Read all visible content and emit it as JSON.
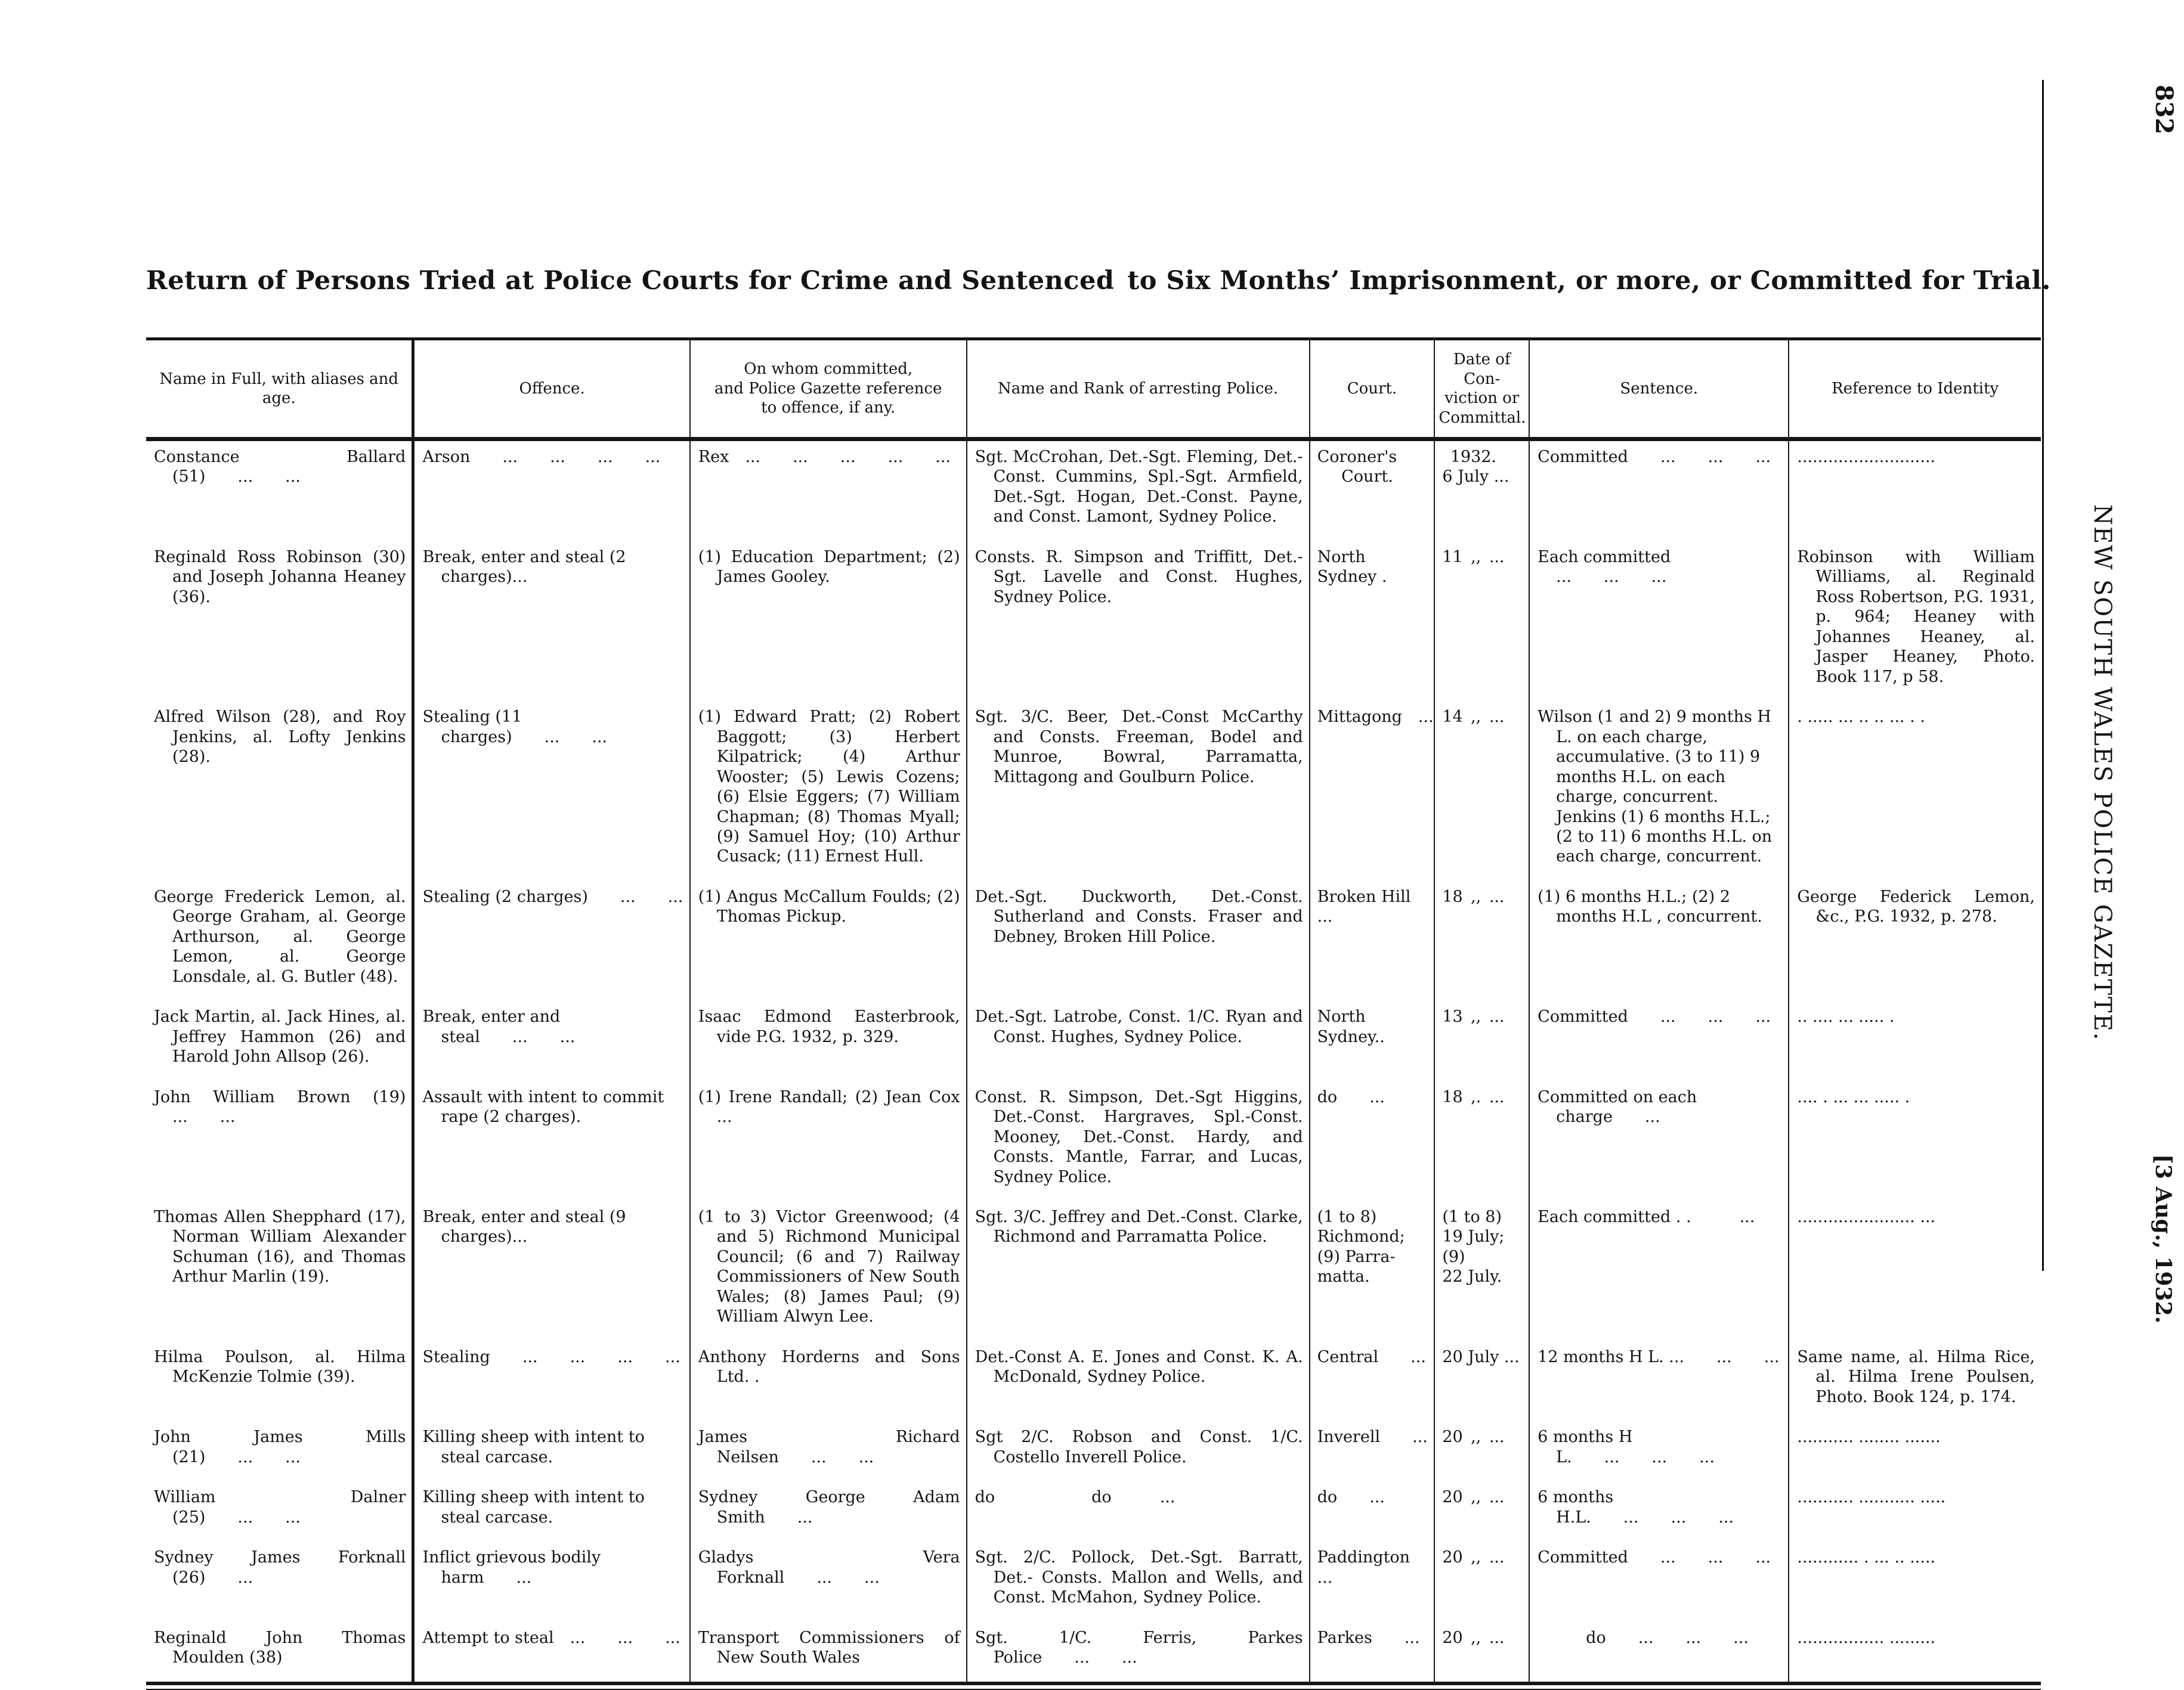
{
  "page": {
    "page_number": "832",
    "title": "Return of Persons Tried at Police Courts for Crime and Sentenced to Six Months’ Imprisonment, or more, or Committed for Trial.",
    "journal_name": "NEW SOUTH WALES POLICE GAZETTE.",
    "issue_date": "[3 Aug., 1932."
  },
  "table": {
    "headers": [
      "Name in Full, with aliases and age.",
      "Offence.",
      "On whom committed,\nand Police Gazette reference\nto offence, if any.",
      "Name and Rank of arresting Police.",
      "Court.",
      "Date of\nCon-\nviction or\nCommittal.",
      "Sentence.",
      "Reference to Identity"
    ],
    "rows": [
      {
        "name": "Constance Ballard (51)  ...  ...",
        "offence": "Arson  ...  ...  ...  ...",
        "on_whom": "Rex ...  ...  ...  ...  ...",
        "police": "Sgt. McCrohan, Det.-Sgt. Fleming, Det.-Const. Cummins, Spl.-Sgt. Armfield, Det.-Sgt. Hogan, Det.-Const. Payne, and Const. Lamont, Sydney Police.",
        "court": "Coroner's\n  Court.",
        "date": " 1932.\n6 July ...",
        "sentence": "Committed  ...  ...  ...",
        "reference": "..........................."
      },
      {
        "name": "Reginald Ross Robinson (30) and Joseph Johanna Heaney (36).",
        "offence": "Break, enter and steal (2 charges)...",
        "on_whom": "(1) Education Department; (2) James Gooley.",
        "police": "Consts. R. Simpson and Triffitt, Det.-Sgt. Lavelle and Const. Hughes, Sydney Police.",
        "court": "North Sydney .",
        "date": "11 ,, ...",
        "sentence": "Each committed ...  ...  ...",
        "reference": "Robinson with William Williams, al. Reginald Ross Robertson, P.G. 1931, p. 964; Heaney with Johannes Heaney, al. Jasper Heaney, Photo. Book 117, p 58."
      },
      {
        "name": "Alfred Wilson (28), and Roy Jenkins, al. Lofty Jenkins (28).",
        "offence": "Stealing (11 charges)  ...  ...",
        "on_whom": "(1) Edward Pratt; (2) Robert Baggott; (3) Herbert Kilpatrick; (4) Arthur Wooster; (5) Lewis Cozens; (6) Elsie Eggers; (7) William Chapman; (8) Thomas Myall; (9) Samuel Hoy; (10) Arthur Cusack; (11) Ernest Hull.",
        "police": "Sgt. 3/C. Beer, Det.-Const McCarthy and Consts. Freeman, Bodel and Munroe, Bowral, Parramatta, Mittagong and Goulburn Police.",
        "court": "Mittagong ...",
        "date": "14 ,, ...",
        "sentence": "Wilson (1 and 2) 9 months H L. on each charge, accumulative. (3 to 11) 9 months H.L. on each charge, concurrent. Jenkins (1) 6 months H.L.; (2 to 11) 6 months H.L. on each charge, concurrent.",
        "reference": ". ..... ... .. .. ... . ."
      },
      {
        "name": "George Frederick Lemon, al. George Graham, al. George Arthurson, al. George Lemon, al. George Lonsdale, al. G. Butler (48).",
        "offence": "Stealing (2 charges)  ...  ...",
        "on_whom": "(1) Angus McCallum Foulds; (2) Thomas Pickup.",
        "police": "Det.-Sgt. Duckworth, Det.-Const. Sutherland and Consts. Fraser and Debney, Broken Hill Police.",
        "court": "Broken Hill ...",
        "date": "18 ,, ...",
        "sentence": "(1) 6 months H.L.; (2) 2 months H.L , concurrent.",
        "reference": "George Federick Lemon, &c., P.G. 1932, p. 278."
      },
      {
        "name": "Jack Martin, al. Jack Hines, al. Jeffrey Hammon (26) and Harold John Allsop (26).",
        "offence": "Break, enter and steal  ...  ...",
        "on_whom": "Isaac Edmond Easterbrook, vide P.G. 1932, p. 329.",
        "police": "Det.-Sgt. Latrobe, Const. 1/C. Ryan and Const. Hughes, Sydney Police.",
        "court": "North Sydney..",
        "date": "13 ,, ...",
        "sentence": "Committed  ...  ...  ...",
        "reference": ".. .... ... ..... ."
      },
      {
        "name": "John William Brown (19) ...  ...",
        "offence": "Assault with intent to commit rape (2 charges).",
        "on_whom": "(1) Irene Randall; (2) Jean Cox ...",
        "police": "Const. R. Simpson, Det.-Sgt Higgins, Det.-Const. Hargraves, Spl.-Const. Mooney, Det.-Const. Hardy, and Consts. Mantle, Farrar, and Lucas, Sydney Police.",
        "court": "do  ...",
        "date": "18 ,. ...",
        "sentence": "Committed on each charge  ...",
        "reference": ".... . ... ... ..... ."
      },
      {
        "name": "Thomas Allen Shepphard (17), Norman William Alexander Schuman (16), and Thomas Arthur Marlin (19).",
        "offence": "Break, enter and steal (9 charges)...",
        "on_whom": "(1 to 3) Victor Greenwood; (4 and 5) Richmond Municipal Council; (6 and 7) Railway Commissioners of New South Wales; (8) James Paul; (9) William Alwyn Lee.",
        "police": "Sgt. 3/C. Jeffrey and Det.-Const. Clarke, Richmond and Parramatta Police.",
        "court": "(1 to 8)\nRichmond;\n(9) Parra-\nmatta.",
        "date": "(1 to 8)\n19 July;\n(9)\n22 July.",
        "sentence": "Each committed . .   ...",
        "reference": "....................... ..."
      },
      {
        "name": "Hilma Poulson, al. Hilma McKenzie Tolmie (39).",
        "offence": "Stealing  ...  ...  ...  ...",
        "on_whom": "Anthony Horderns and Sons Ltd. .",
        "police": "Det.-Const A. E. Jones and Const. K. A. McDonald, Sydney Police.",
        "court": "Central  ...",
        "date": "20 July ...",
        "sentence": "12 months H L. ...  ...  ...",
        "reference": "Same name, al. Hilma Rice, al. Hilma Irene Poulsen, Photo. Book 124, p. 174."
      },
      {
        "name": "John James Mills (21)  ...  ...",
        "offence": "Killing sheep with intent to steal carcase.",
        "on_whom": "James Richard Neilsen  ...  ...",
        "police": "Sgt 2/C. Robson and Const. 1/C. Costello Inverell Police.",
        "court": "Inverell  ...",
        "date": "20 ,, ...",
        "sentence": "6 months H L.  ...  ...  ...",
        "reference": "........... ........ ......."
      },
      {
        "name": "William Dalner (25)  ...  ...",
        "offence": "Killing sheep with intent to steal carcase.",
        "on_whom": "Sydney George Adam Smith  ...",
        "police": "do      do   ...",
        "court": "do  ...",
        "date": "20 ,, ...",
        "sentence": "6 months H.L.  ...  ...  ...",
        "reference": "........... ........... ....."
      },
      {
        "name": "Sydney James Forknall (26)  ...",
        "offence": "Inflict grievous bodily harm  ...",
        "on_whom": "Gladys Vera Forknall  ...  ...",
        "police": "Sgt. 2/C. Pollock, Det.-Sgt. Barratt, Det.- Consts. Mallon and Wells, and Const. McMahon, Sydney Police.",
        "court": "Paddington ...",
        "date": "20 ,, ...",
        "sentence": "Committed  ...  ...  ...",
        "reference": "............ . ... .. ....."
      },
      {
        "name": "Reginald John Thomas Moulden (38)",
        "offence": "Attempt to steal ...  ...  ...",
        "on_whom": "Transport Commissioners of New South Wales",
        "police": "Sgt. 1/C. Ferris, Parkes Police  ...  ...",
        "court": "Parkes  ...",
        "date": "20 ,, ...",
        "sentence": "   do  ...  ...  ...",
        "reference": "................. ........."
      }
    ]
  }
}
